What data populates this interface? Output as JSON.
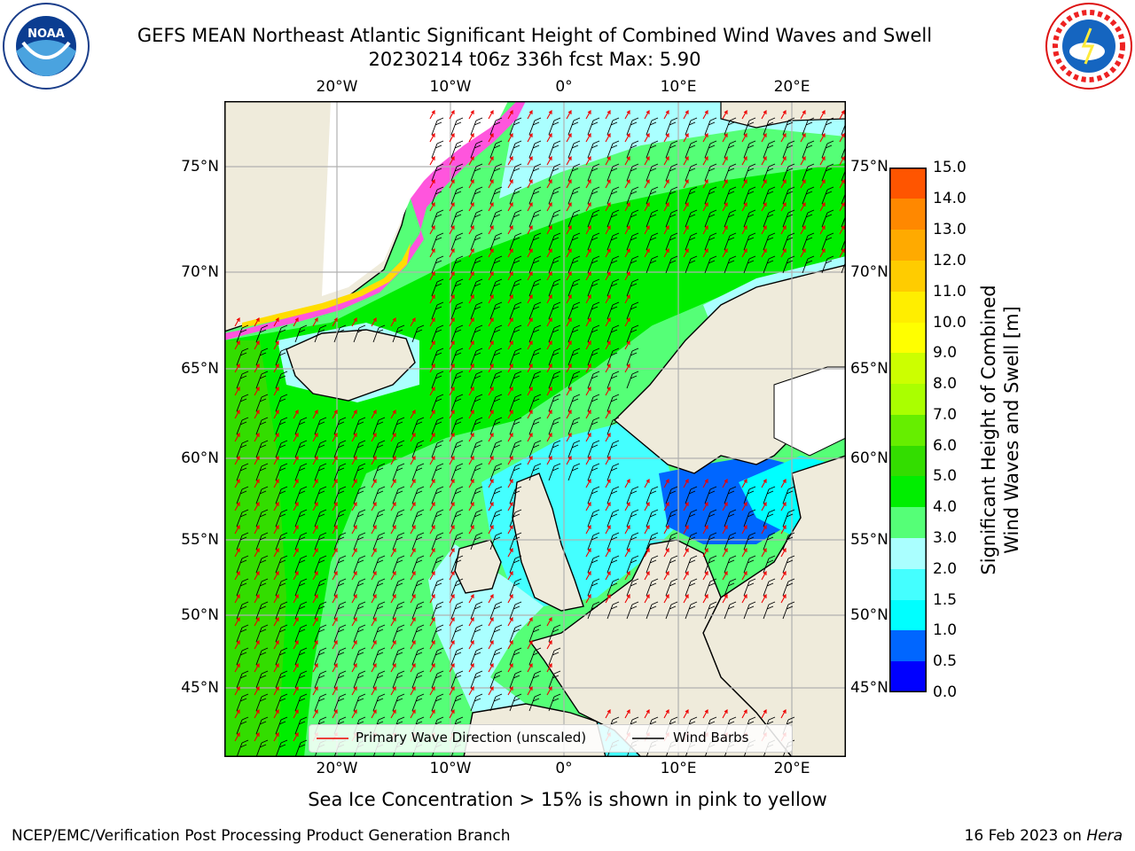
{
  "header": {
    "title_line1": "GEFS MEAN Northeast Atlantic Significant Height of Combined Wind Waves and Swell",
    "title_line2": "20230214 t06z 336h fcst   Max: 5.90"
  },
  "logos": {
    "left": "noaa-logo",
    "right": "nws-logo"
  },
  "map": {
    "lon_labels": [
      "20°W",
      "10°W",
      "0°",
      "10°E",
      "20°E"
    ],
    "lat_labels": [
      "75°N",
      "70°N",
      "65°N",
      "60°N",
      "55°N",
      "50°N",
      "45°N"
    ]
  },
  "legend": {
    "wave_label": "Primary Wave Direction (unscaled)",
    "barb_label": "Wind Barbs"
  },
  "colorbar": {
    "label_line1": "Significant Height of Combined",
    "label_line2": "Wind Waves and Swell [m]",
    "ticks": [
      "15.0",
      "14.0",
      "13.0",
      "12.0",
      "11.0",
      "10.0",
      "9.0",
      "8.0",
      "7.0",
      "6.0",
      "5.0",
      "4.0",
      "3.0",
      "2.0",
      "1.5",
      "1.0",
      "0.5",
      "0.0"
    ],
    "colors": [
      "#0000ff",
      "#0066ff",
      "#00ffff",
      "#44ffff",
      "#aaffff",
      "#55ff77",
      "#00ee00",
      "#33dd00",
      "#66ee00",
      "#aaff00",
      "#ccff00",
      "#ffff00",
      "#ffee00",
      "#ffcc00",
      "#ffaa00",
      "#ff8800",
      "#ff5500",
      "#ff2200",
      "#ff0000"
    ]
  },
  "note": "Sea Ice Concentration > 15% is shown in pink to yellow",
  "footer": {
    "left": "NCEP/EMC/Verification Post Processing Product Generation Branch",
    "right_prefix": "16 Feb 2023 on ",
    "right_italic": "Hera"
  }
}
